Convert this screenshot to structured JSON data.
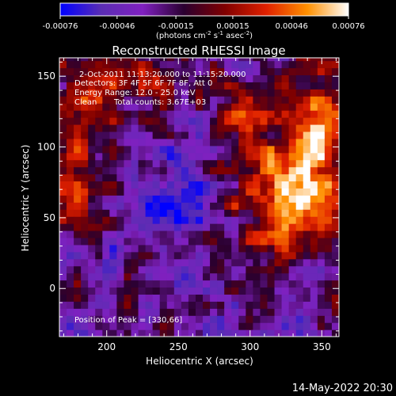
{
  "colorbar": {
    "ticks": [
      {
        "value": -0.00076,
        "label": "-0.00076"
      },
      {
        "value": -0.00046,
        "label": "-0.00046"
      },
      {
        "value": -0.00015,
        "label": "-0.00015"
      },
      {
        "value": 0.00015,
        "label": "0.00015"
      },
      {
        "value": 0.00046,
        "label": "0.00046"
      },
      {
        "value": 0.00076,
        "label": "0.00076"
      }
    ],
    "range": [
      -0.00076,
      0.00076
    ],
    "stops": [
      "#0000ff",
      "#5a2db3",
      "#8020c0",
      "#2a0030",
      "#800000",
      "#e02000",
      "#ff9000",
      "#ffffff"
    ]
  },
  "chart_data": {
    "type": "heatmap",
    "title": "Reconstructed RHESSI Image",
    "xlabel": "Heliocentric X (arcsec)",
    "ylabel": "Heliocentric Y (arcsec)",
    "xlim": [
      167,
      362
    ],
    "ylim": [
      -34,
      163
    ],
    "xticks": [
      200,
      250,
      300,
      350
    ],
    "yticks": [
      0,
      50,
      100,
      150
    ],
    "annotations": {
      "line1": "2-Oct-2011 11:13:20.000 to 11:15:20.000",
      "line2": "Detectors: 3F 4F 5F 6F 7F 8F, Att 0",
      "line3": "Energy Range: 12.0 - 25.0 keV",
      "line4_left": "Clean",
      "line4_right": "Total counts: 3.67E+03",
      "peak": "Position of Peak = [330,66]"
    },
    "peak": [
      330,
      66
    ]
  },
  "footer": {
    "timestamp": "14-May-2022 20:30"
  }
}
